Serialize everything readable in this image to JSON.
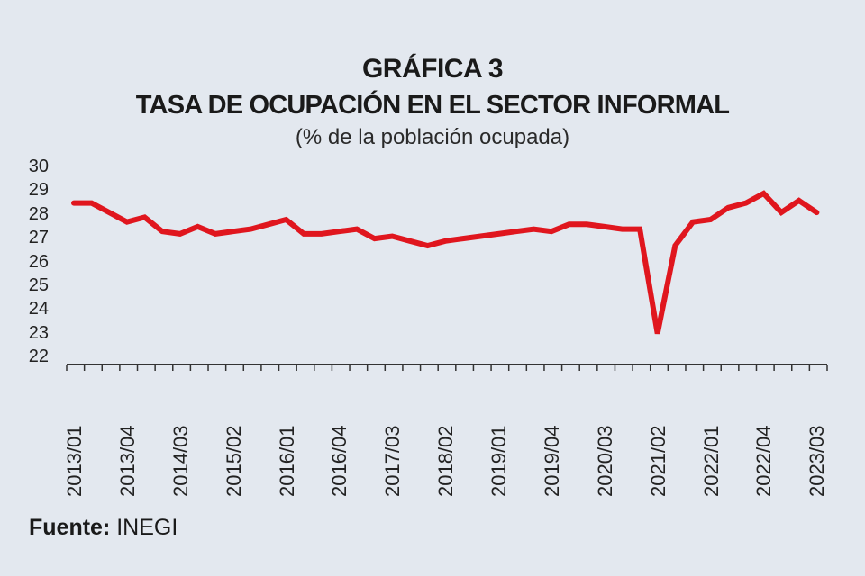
{
  "title": "GRÁFICA 3",
  "subtitle": "TASA DE OCUPACIÓN EN EL SECTOR INFORMAL",
  "unit_note": "(% de la población ocupada)",
  "source_label": "Fuente:",
  "source_value": "INEGI",
  "colors": {
    "background": "#e3e8ef",
    "line": "#e0161e",
    "axis": "#333333"
  },
  "chart_data": {
    "type": "line",
    "title": "TASA DE OCUPACIÓN EN EL SECTOR INFORMAL",
    "subtitle": "(% de la población ocupada)",
    "xlabel": "",
    "ylabel": "% de la población ocupada",
    "ylim": [
      22,
      30
    ],
    "yticks": [
      22,
      23,
      24,
      25,
      26,
      27,
      28,
      29,
      30
    ],
    "xtick_labels": [
      "2013/01",
      "2013/04",
      "2014/03",
      "2015/02",
      "2016/01",
      "2016/04",
      "2017/03",
      "2018/02",
      "2019/01",
      "2019/04",
      "2020/03",
      "2021/02",
      "2022/01",
      "2022/04",
      "2023/03"
    ],
    "grid": false,
    "legend": null,
    "series": [
      {
        "name": "Tasa de ocupación en el sector informal",
        "x": [
          "2013/01",
          "2013/02",
          "2013/03",
          "2013/04",
          "2014/01",
          "2014/02",
          "2014/03",
          "2014/04",
          "2015/01",
          "2015/02",
          "2015/03",
          "2015/04",
          "2016/01",
          "2016/02",
          "2016/03",
          "2016/04",
          "2017/01",
          "2017/02",
          "2017/03",
          "2017/04",
          "2018/01",
          "2018/02",
          "2018/03",
          "2018/04",
          "2019/01",
          "2019/02",
          "2019/03",
          "2019/04",
          "2020/01",
          "2020/02",
          "2020/03",
          "2020/04",
          "2021/01",
          "2021/02",
          "2021/03",
          "2021/04",
          "2022/01",
          "2022/02",
          "2022/03",
          "2022/04",
          "2023/01",
          "2023/02",
          "2023/03"
        ],
        "values": [
          28.5,
          28.5,
          28.1,
          27.7,
          27.9,
          27.3,
          27.2,
          27.5,
          27.2,
          27.3,
          27.4,
          27.6,
          27.8,
          27.2,
          27.2,
          27.3,
          27.4,
          27.0,
          27.1,
          26.9,
          26.7,
          26.9,
          27.0,
          27.1,
          27.2,
          27.3,
          27.4,
          27.3,
          27.6,
          27.6,
          27.5,
          27.4,
          27.4,
          23.0,
          26.7,
          27.7,
          27.8,
          28.3,
          28.5,
          28.9,
          28.1,
          28.6,
          28.1
        ]
      }
    ]
  }
}
